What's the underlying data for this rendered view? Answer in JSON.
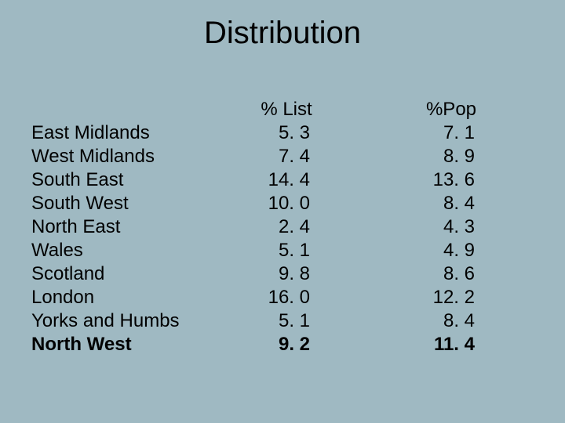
{
  "background_color": "#9fb9c2",
  "text_color": "#000000",
  "title": "Distribution",
  "title_fontsize": 40,
  "body_fontsize": 24,
  "table": {
    "columns": [
      "",
      "% List",
      "%Pop"
    ],
    "rows": [
      {
        "region": "East Midlands",
        "list": "5. 3",
        "pop": "7. 1",
        "bold": false
      },
      {
        "region": "West Midlands",
        "list": "7. 4",
        "pop": "8. 9",
        "bold": false
      },
      {
        "region": "South East",
        "list": "14. 4",
        "pop": "13. 6",
        "bold": false
      },
      {
        "region": "South West",
        "list": "10. 0",
        "pop": "8. 4",
        "bold": false
      },
      {
        "region": "North East",
        "list": "2. 4",
        "pop": "4. 3",
        "bold": false
      },
      {
        "region": "Wales",
        "list": "5. 1",
        "pop": "4. 9",
        "bold": false
      },
      {
        "region": "Scotland",
        "list": "9. 8",
        "pop": "8. 6",
        "bold": false
      },
      {
        "region": "London",
        "list": "16. 0",
        "pop": "12. 2",
        "bold": false
      },
      {
        "region": "Yorks and Humbs",
        "list": "5. 1",
        "pop": "8. 4",
        "bold": false
      },
      {
        "region": "North West",
        "list": "9. 2",
        "pop": "11. 4",
        "bold": true
      }
    ]
  }
}
